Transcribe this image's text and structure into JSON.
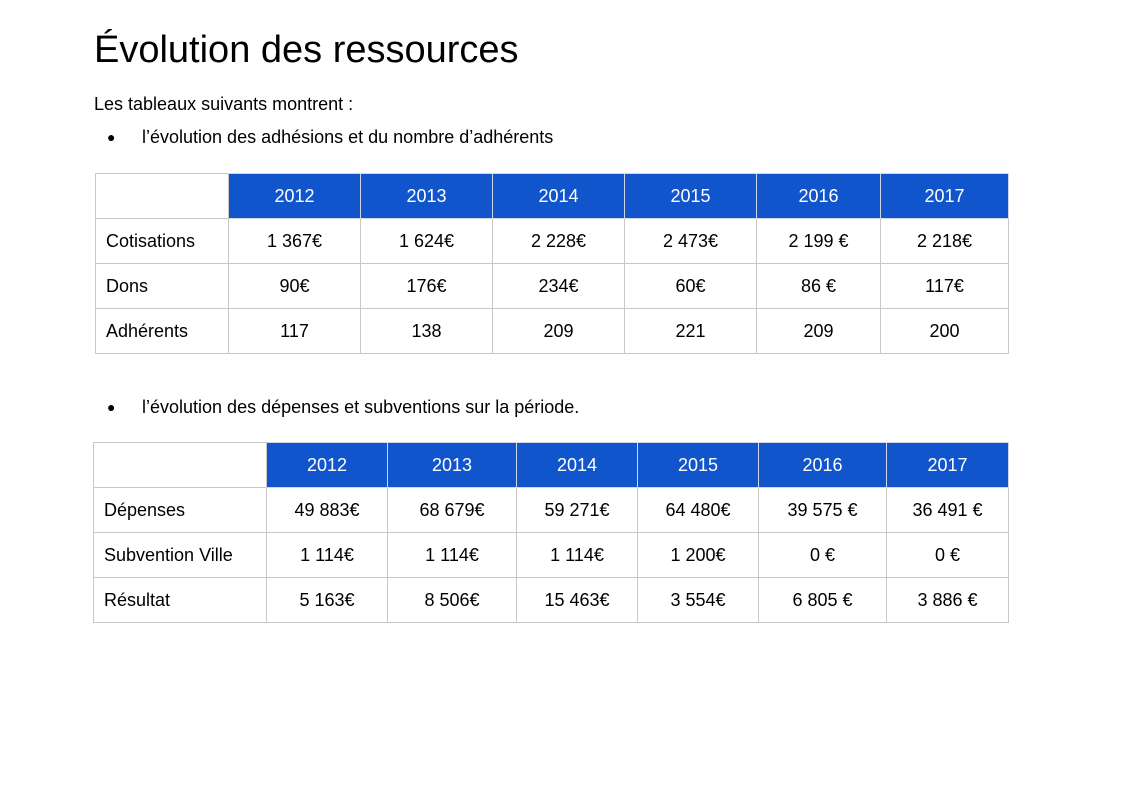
{
  "title": "Évolution des ressources",
  "intro": "Les tableaux suivants montrent :",
  "bullet_glyph": "●",
  "bullet1": "l’évolution des adhésions et du nombre d’adhérents",
  "bullet2": "l’évolution des dépenses et subventions sur la période.",
  "colors": {
    "header_fill": "#1155cc",
    "header_text": "#ffffff",
    "border": "#c8c8c8"
  },
  "table1": {
    "years": [
      "2012",
      "2013",
      "2014",
      "2015",
      "2016",
      "2017"
    ],
    "rows": [
      {
        "label": "Cotisations",
        "values": [
          "1 367€",
          "1 624€",
          "2 228€",
          "2 473€",
          "2 199 €",
          "2 218€"
        ]
      },
      {
        "label": "Dons",
        "values": [
          "90€",
          "176€",
          "234€",
          "60€",
          "86 €",
          "117€"
        ]
      },
      {
        "label": "Adhérents",
        "values": [
          "117",
          "138",
          "209",
          "221",
          "209",
          "200"
        ]
      }
    ]
  },
  "table2": {
    "years": [
      "2012",
      "2013",
      "2014",
      "2015",
      "2016",
      "2017"
    ],
    "rows": [
      {
        "label": "Dépenses",
        "values": [
          "49 883€",
          "68 679€",
          "59 271€",
          "64 480€",
          "39 575 €",
          "36 491 €"
        ]
      },
      {
        "label": "Subvention Ville",
        "values": [
          "1 114€",
          "1 114€",
          "1 114€",
          "1 200€",
          "0 €",
          "0 €"
        ]
      },
      {
        "label": "Résultat",
        "values": [
          "5 163€",
          "8 506€",
          "15 463€",
          "3 554€",
          "6 805 €",
          "3 886 €"
        ]
      }
    ]
  }
}
